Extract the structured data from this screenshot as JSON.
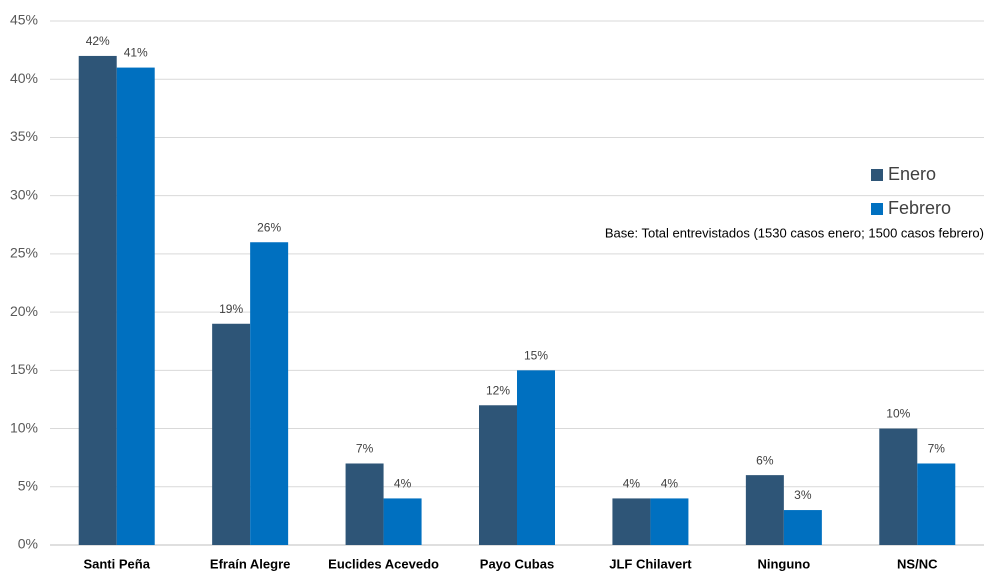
{
  "chart_data": {
    "type": "bar",
    "categories": [
      "Santi Peña",
      "Efraín Alegre",
      "Euclides Acevedo",
      "Payo Cubas",
      "JLF Chilavert",
      "Ninguno",
      "NS/NC"
    ],
    "series": [
      {
        "name": "Enero",
        "color": "#2e5577",
        "values": [
          42,
          19,
          7,
          12,
          4,
          6,
          10
        ],
        "value_labels": [
          "42%",
          "19%",
          "7%",
          "12%",
          "4%",
          "6%",
          "10%"
        ]
      },
      {
        "name": "Febrero",
        "color": "#0070c0",
        "values": [
          41,
          26,
          4,
          15,
          4,
          3,
          7
        ],
        "value_labels": [
          "41%",
          "26%",
          "4%",
          "15%",
          "4%",
          "3%",
          "7%"
        ]
      }
    ],
    "ylim": [
      0,
      45
    ],
    "yticks": [
      {
        "value": 0,
        "label": "0%"
      },
      {
        "value": 5,
        "label": "5%"
      },
      {
        "value": 10,
        "label": "10%"
      },
      {
        "value": 15,
        "label": "15%"
      },
      {
        "value": 20,
        "label": "20%"
      },
      {
        "value": 25,
        "label": "25%"
      },
      {
        "value": 30,
        "label": "30%"
      },
      {
        "value": 35,
        "label": "35%"
      },
      {
        "value": 40,
        "label": "40%"
      },
      {
        "value": 45,
        "label": "45%"
      }
    ],
    "grid": true,
    "legend": "right",
    "note": "Base: Total entrevistados (1530 casos enero; 1500 casos febrero)"
  }
}
